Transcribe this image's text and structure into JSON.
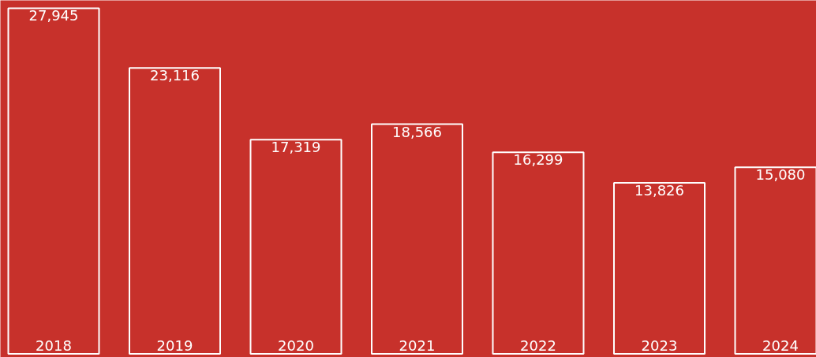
{
  "chart_data": {
    "type": "bar",
    "categories": [
      "2018",
      "2019",
      "2020",
      "2021",
      "2022",
      "2023",
      "2024"
    ],
    "values": [
      27945,
      23116,
      17319,
      18566,
      16299,
      13826,
      15080
    ],
    "value_labels": [
      "27,945",
      "23,116",
      "17,319",
      "18,566",
      "16,299",
      "13,826",
      "15,080"
    ],
    "color": "#ffffff"
  }
}
